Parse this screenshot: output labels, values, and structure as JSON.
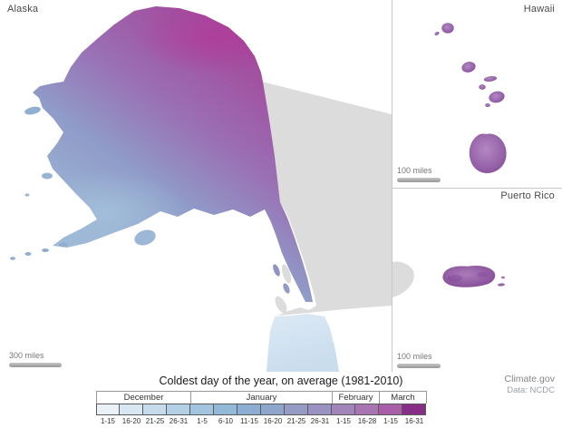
{
  "title": "Coldest day of the year, on average (1981-2010)",
  "credits": {
    "source": "Climate.gov",
    "data": "Data: NCDC"
  },
  "panels": {
    "alaska": {
      "label": "Alaska",
      "scale_label": "300 miles"
    },
    "hawaii": {
      "label": "Hawaii",
      "scale_label": "100 miles"
    },
    "puerto_rico": {
      "label": "Puerto Rico",
      "scale_label": "100 miles"
    }
  },
  "legend": {
    "months": [
      {
        "label": "December",
        "span": 4
      },
      {
        "label": "January",
        "span": 6
      },
      {
        "label": "February",
        "span": 2
      },
      {
        "label": "March",
        "span": 2
      }
    ],
    "bins": [
      {
        "label": "1-15",
        "color": "#eaf2f8"
      },
      {
        "label": "16-20",
        "color": "#d8e7f2"
      },
      {
        "label": "21-25",
        "color": "#c6dcec"
      },
      {
        "label": "26-31",
        "color": "#b4d0e5"
      },
      {
        "label": "1-5",
        "color": "#a2c4de"
      },
      {
        "label": "6-10",
        "color": "#93b9d8"
      },
      {
        "label": "11-15",
        "color": "#8caed2"
      },
      {
        "label": "16-20",
        "color": "#8fa6cc"
      },
      {
        "label": "21-25",
        "color": "#949cc6"
      },
      {
        "label": "26-31",
        "color": "#9a92c0"
      },
      {
        "label": "1-15",
        "color": "#a184ba"
      },
      {
        "label": "16-28",
        "color": "#a974b2"
      },
      {
        "label": "1-15",
        "color": "#a95fa7"
      },
      {
        "label": "16-31",
        "color": "#872e86"
      }
    ]
  },
  "map_colors": {
    "non_us_land": "#dcdcdc",
    "alaska_north": "#a4489b",
    "alaska_mid": "#9a6fb4",
    "alaska_bluepurple": "#8f9cc8",
    "alaska_blue": "#9fbbd7",
    "pnw_light": "#dce9f4",
    "hawaii_purple": "#9561a7",
    "puerto_rico_purple": "#8f58a0"
  }
}
